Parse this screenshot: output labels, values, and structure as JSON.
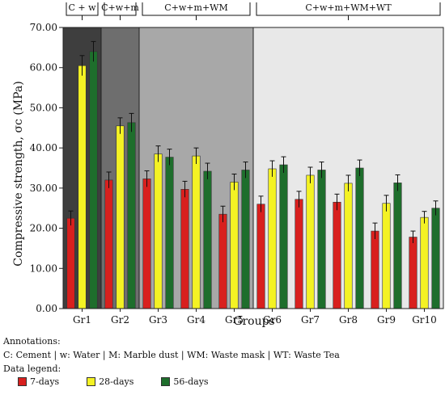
{
  "chart_data": {
    "type": "bar",
    "ylabel": "Compressive strength, σc (MPa)",
    "xlabel": "Groups",
    "ylim": [
      0,
      70
    ],
    "yticks": [
      "0.00",
      "10.00",
      "20.00",
      "30.00",
      "40.00",
      "50.00",
      "60.00",
      "70.00"
    ],
    "categories": [
      "Gr1",
      "Gr2",
      "Gr3",
      "Gr4",
      "Gr5",
      "Gr6",
      "Gr7",
      "Gr8",
      "Gr9",
      "Gr10"
    ],
    "series": [
      {
        "name": "7-days",
        "color": "#d8201e",
        "values": [
          22.5,
          32.0,
          32.3,
          29.7,
          23.5,
          26.0,
          27.2,
          26.5,
          19.3,
          17.8
        ],
        "errors": [
          1.8,
          2.0,
          2.0,
          2.0,
          2.0,
          2.0,
          2.0,
          2.0,
          2.0,
          1.5
        ]
      },
      {
        "name": "28-days",
        "color": "#f4f224",
        "values": [
          60.5,
          45.5,
          38.5,
          38.0,
          31.5,
          34.8,
          33.2,
          31.2,
          26.2,
          22.7
        ],
        "errors": [
          2.5,
          2.0,
          2.0,
          2.0,
          2.0,
          2.0,
          2.0,
          2.0,
          2.0,
          1.5
        ]
      },
      {
        "name": "56-days",
        "color": "#1e6e2c",
        "values": [
          64.0,
          46.3,
          37.7,
          34.2,
          34.5,
          35.8,
          34.5,
          35.0,
          31.3,
          25.0
        ],
        "errors": [
          2.5,
          2.3,
          2.0,
          2.0,
          2.0,
          2.0,
          2.0,
          2.0,
          2.0,
          1.8
        ]
      }
    ],
    "groups": [
      {
        "label": "C + w",
        "from": 0,
        "to": 0,
        "shade": "#3e3e3e"
      },
      {
        "label": "C+w+m",
        "from": 1,
        "to": 1,
        "shade": "#6e6e6e"
      },
      {
        "label": "C+w+m+WM",
        "from": 2,
        "to": 4,
        "shade": "#a8a8a8"
      },
      {
        "label": "C+w+m+WM+WT",
        "from": 5,
        "to": 9,
        "shade": "#e8e8e8"
      }
    ],
    "grid": false,
    "legend_position": "bottom-left"
  },
  "annotations": {
    "title": "Annotations:",
    "text": "C: Cement | w: Water | M: Marble dust | WM: Waste mask | WT: Waste Tea",
    "legend_title": "Data legend:"
  }
}
